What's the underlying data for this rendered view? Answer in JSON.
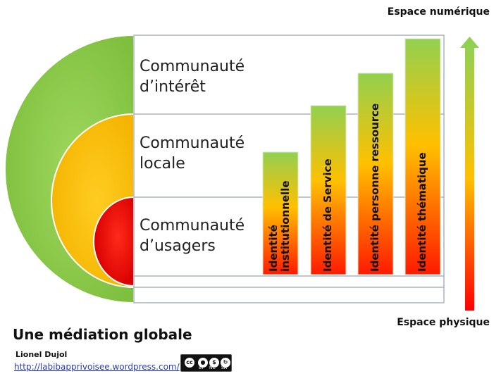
{
  "space_top_label": "Espace numérique",
  "space_bottom_label": "Espace physique",
  "rows": [
    {
      "label_line1": "Communauté",
      "label_line2": "d’intérêt"
    },
    {
      "label_line1": "Communauté",
      "label_line2": "locale"
    },
    {
      "label_line1": "Communauté",
      "label_line2": "d’usagers"
    }
  ],
  "bars": [
    {
      "line1": "Identité",
      "line2": "institutionnelle"
    },
    {
      "line1": "Identité de Service",
      "line2": ""
    },
    {
      "line1": "Identité  personne ressource",
      "line2": ""
    },
    {
      "line1": "Identité thématique",
      "line2": ""
    }
  ],
  "title": "Une médiation globale",
  "author": "Lionel Dujol",
  "url": "http://labibapprivoisee.wordpress.com/",
  "license": {
    "by": "BY",
    "nc": "NC",
    "sa": "SA",
    "cc": "cc"
  },
  "colors": {
    "green": "#92d050",
    "yellow": "#ffc000",
    "red": "#ff0000"
  }
}
